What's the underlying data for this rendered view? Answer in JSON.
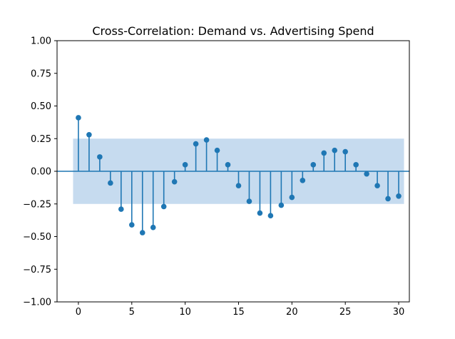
{
  "chart_data": {
    "type": "scatter",
    "title": "Cross-Correlation: Demand vs. Advertising Spend",
    "xlabel": "",
    "ylabel": "",
    "xlim": [
      -2,
      31
    ],
    "ylim": [
      -1.0,
      1.0
    ],
    "x_ticks": [
      0,
      5,
      10,
      15,
      20,
      25,
      30
    ],
    "x_tick_labels": [
      "0",
      "5",
      "10",
      "15",
      "20",
      "25",
      "30"
    ],
    "y_ticks": [
      1.0,
      0.75,
      0.5,
      0.25,
      0.0,
      -0.25,
      -0.5,
      -0.75,
      -1.0
    ],
    "y_tick_labels": [
      "1.00",
      "0.75",
      "0.50",
      "0.25",
      "0.00",
      "−0.25",
      "−0.50",
      "−0.75",
      "−1.00"
    ],
    "confidence_band": {
      "lower": -0.25,
      "upper": 0.25,
      "x_range": [
        -0.5,
        30.5
      ]
    },
    "grid": false,
    "lags": [
      0,
      1,
      2,
      3,
      4,
      5,
      6,
      7,
      8,
      9,
      10,
      11,
      12,
      13,
      14,
      15,
      16,
      17,
      18,
      19,
      20,
      21,
      22,
      23,
      24,
      25,
      26,
      27,
      28,
      29,
      30
    ],
    "values": [
      0.41,
      0.28,
      0.11,
      -0.09,
      -0.29,
      -0.41,
      -0.47,
      -0.43,
      -0.27,
      -0.08,
      0.05,
      0.21,
      0.24,
      0.16,
      0.05,
      -0.11,
      -0.23,
      -0.32,
      -0.34,
      -0.26,
      -0.2,
      -0.07,
      0.05,
      0.14,
      0.16,
      0.15,
      0.05,
      -0.02,
      -0.11,
      -0.21,
      -0.19
    ],
    "colors": {
      "stem": "#1f77b4",
      "marker": "#1f77b4",
      "band": "#c6dbef",
      "axis": "#000000"
    }
  }
}
